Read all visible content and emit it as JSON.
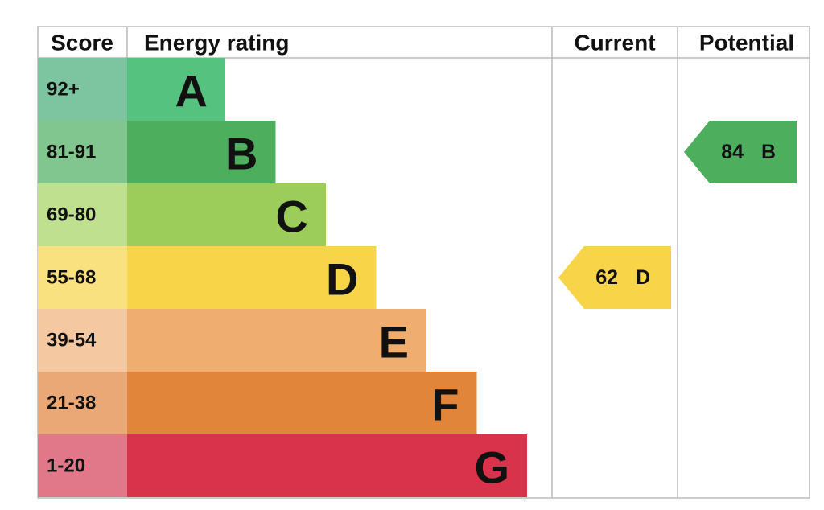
{
  "header": {
    "score": "Score",
    "rating": "Energy rating",
    "current": "Current",
    "potential": "Potential"
  },
  "bands": [
    {
      "score": "92+",
      "letter": "A"
    },
    {
      "score": "81-91",
      "letter": "B"
    },
    {
      "score": "69-80",
      "letter": "C"
    },
    {
      "score": "55-68",
      "letter": "D"
    },
    {
      "score": "39-54",
      "letter": "E"
    },
    {
      "score": "21-38",
      "letter": "F"
    },
    {
      "score": "1-20",
      "letter": "G"
    }
  ],
  "current": {
    "value": 62,
    "letter": "D"
  },
  "potential": {
    "value": 84,
    "letter": "B"
  }
}
